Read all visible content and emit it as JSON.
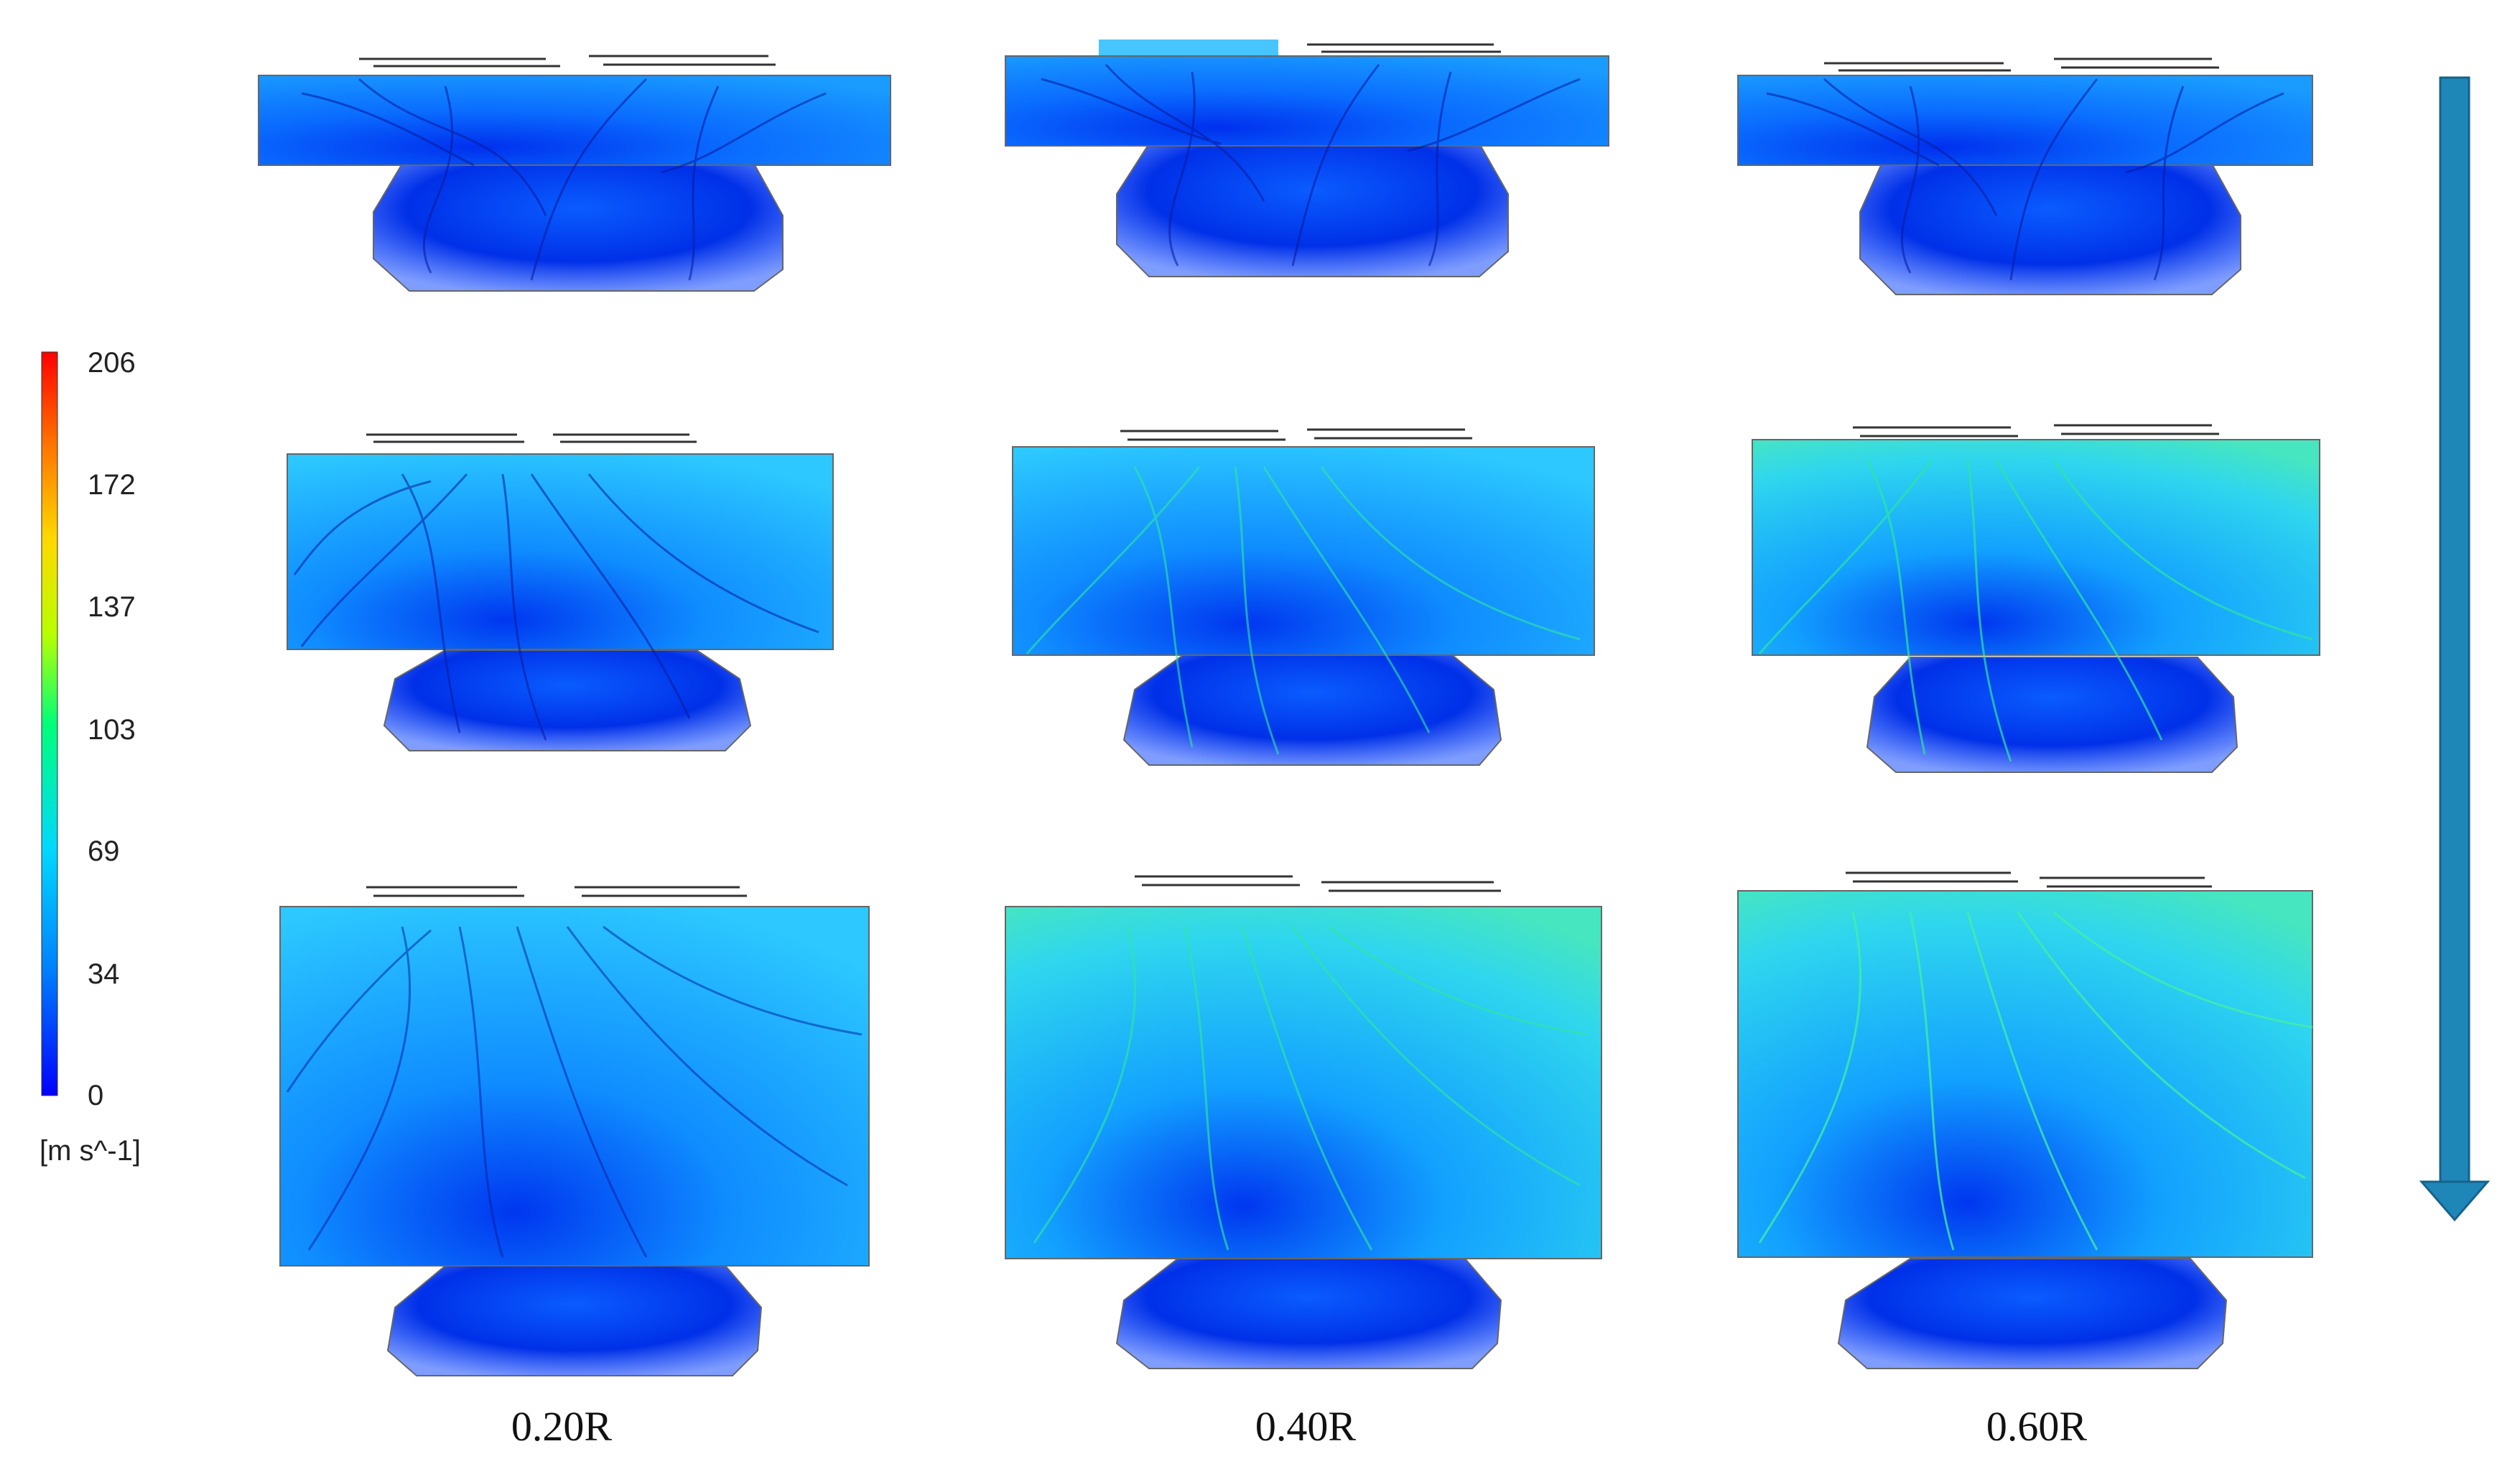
{
  "colorbar": {
    "ticks": [
      "206",
      "172",
      "137",
      "103",
      "69",
      "34",
      "0"
    ],
    "unit": "[m s^-1]",
    "colors": [
      "#0000ff",
      "#0080ff",
      "#00d8ff",
      "#00ff7a",
      "#b8ff00",
      "#ffd800",
      "#ff7000",
      "#ff0000"
    ]
  },
  "columns": [
    "0.20R",
    "0.40R",
    "0.60R"
  ],
  "rows": 3,
  "arrow": {
    "direction": "down",
    "color": "#1f86b8"
  },
  "flow_colors": {
    "deep": "#0026e6",
    "mid": "#0a6cff",
    "light": "#19b6ff",
    "high": "#33e6a8",
    "line": "#001a9e"
  }
}
